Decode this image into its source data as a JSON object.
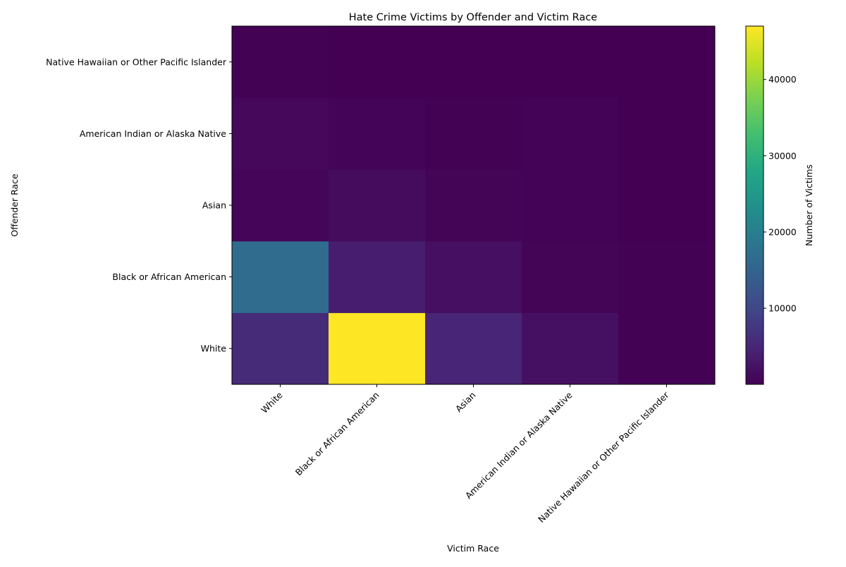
{
  "chart_data": {
    "type": "heatmap",
    "title": "Hate Crime Victims by Offender and Victim Race",
    "xlabel": "Victim Race",
    "ylabel": "Offender Race",
    "x_categories": [
      "White",
      "Black or African American",
      "Asian",
      "American Indian or Alaska Native",
      "Native Hawaiian or Other Pacific Islander"
    ],
    "y_categories_bottom_to_top": [
      "White",
      "Black or African American",
      "Asian",
      "American Indian or Alaska Native",
      "Native Hawaiian or Other Pacific Islander"
    ],
    "values_by_row_bottom_to_top": [
      [
        5800,
        47000,
        4900,
        2000,
        150
      ],
      [
        16500,
        3900,
        1900,
        500,
        100
      ],
      [
        700,
        1500,
        500,
        300,
        30
      ],
      [
        900,
        400,
        200,
        250,
        20
      ],
      [
        150,
        80,
        40,
        30,
        60
      ]
    ],
    "colormap": "viridis",
    "colorbar": {
      "label": "Number of Victims",
      "range": [
        20,
        47000
      ],
      "ticks": [
        10000,
        20000,
        30000,
        40000
      ]
    }
  }
}
